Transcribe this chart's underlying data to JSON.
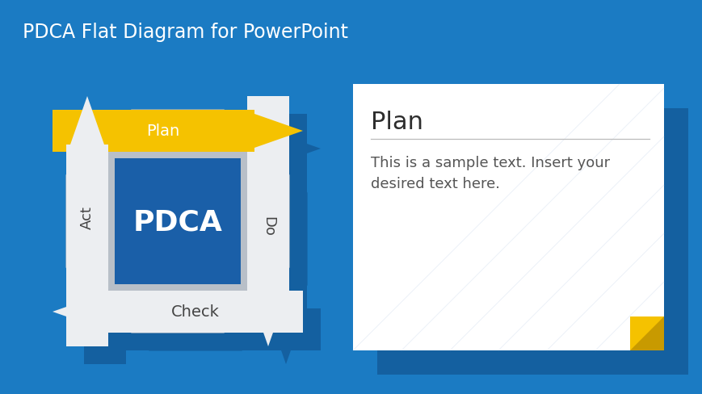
{
  "bg_color": "#1b7bc3",
  "title": "PDCA Flat Diagram for PowerPoint",
  "title_color": "#ffffff",
  "title_fontsize": 17,
  "center_label": "PDCA",
  "center_color": "#1a5fa8",
  "arrow_gray": "#b8bfc8",
  "arrow_light": "#dde0e5",
  "arrow_white": "#eceef1",
  "arrow_gold": "#f5c200",
  "arrow_dark_gold": "#c89a00",
  "labels": [
    "Plan",
    "Do",
    "Check",
    "Act"
  ],
  "card_bg": "#ffffff",
  "card_title": "Plan",
  "card_title_color": "#2d2d2d",
  "card_title_fontsize": 22,
  "card_text": "This is a sample text. Insert your\ndesired text here.",
  "card_text_color": "#555555",
  "card_text_fontsize": 13,
  "card_accent_color": "#f5c200",
  "card_accent_dark": "#c89a00",
  "shadow_color": "#1460a0"
}
